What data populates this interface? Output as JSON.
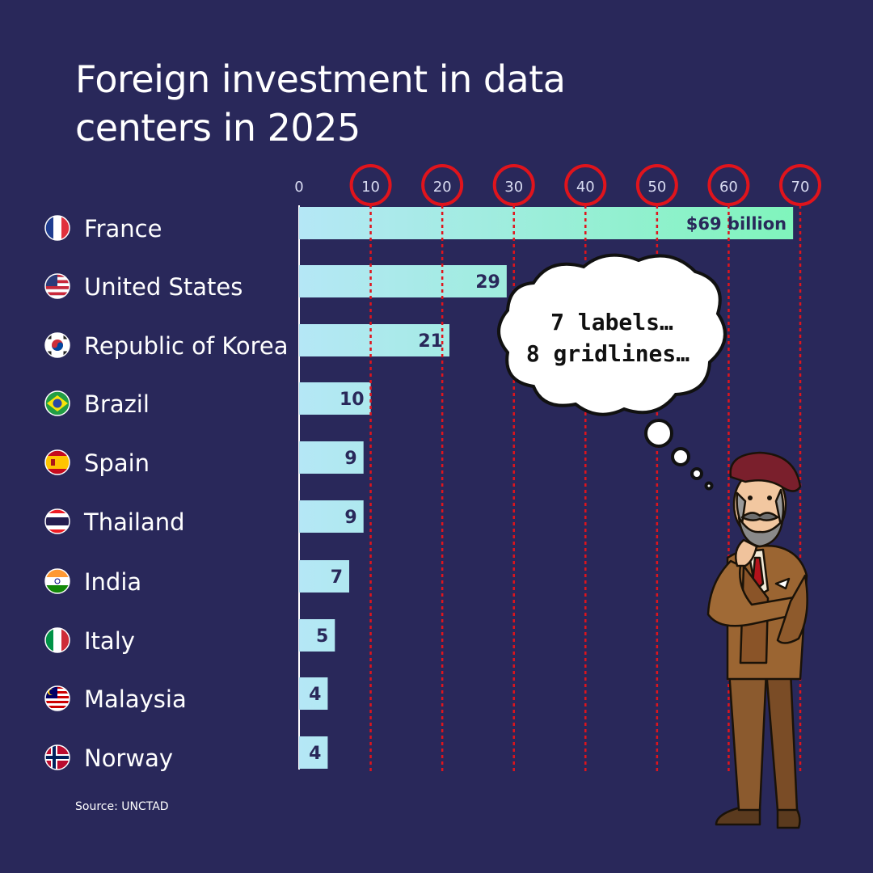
{
  "title": "Foreign investment in data centers in 2025",
  "source": "Source: UNCTAD",
  "colors": {
    "background": "#29285a",
    "bar_start": "#b5e7f6",
    "bar_end": "#7ff5bb",
    "gridline": "#e0141c",
    "text": "#ffffff",
    "value_text": "#29285a"
  },
  "chart_data": {
    "type": "bar",
    "orientation": "horizontal",
    "title": "Foreign investment in data centers in 2025",
    "xlim": [
      0,
      70
    ],
    "x_ticks": [
      0,
      10,
      20,
      30,
      40,
      50,
      60,
      70
    ],
    "categories": [
      "France",
      "United States",
      "Republic of Korea",
      "Brazil",
      "Spain",
      "Thailand",
      "India",
      "Italy",
      "Malaysia",
      "Norway"
    ],
    "values": [
      69,
      29,
      21,
      10,
      9,
      9,
      7,
      5,
      4,
      4
    ],
    "value_labels": [
      "$69 billion",
      "29",
      "21",
      "10",
      "9",
      "9",
      "7",
      "5",
      "4",
      "4"
    ],
    "flag_icons": [
      "france-flag-icon",
      "united-states-flag-icon",
      "korea-flag-icon",
      "brazil-flag-icon",
      "spain-flag-icon",
      "thailand-flag-icon",
      "india-flag-icon",
      "italy-flag-icon",
      "malaysia-flag-icon",
      "norway-flag-icon"
    ],
    "annotations": {
      "circled_ticks": [
        10,
        20,
        30,
        40,
        50,
        60,
        70
      ],
      "thought_bubble": [
        "7 labels…",
        "8 gridlines…"
      ]
    },
    "grid": "dotted red vertical lines"
  },
  "illustration": "pondering-man-in-brown-suit-and-beret"
}
